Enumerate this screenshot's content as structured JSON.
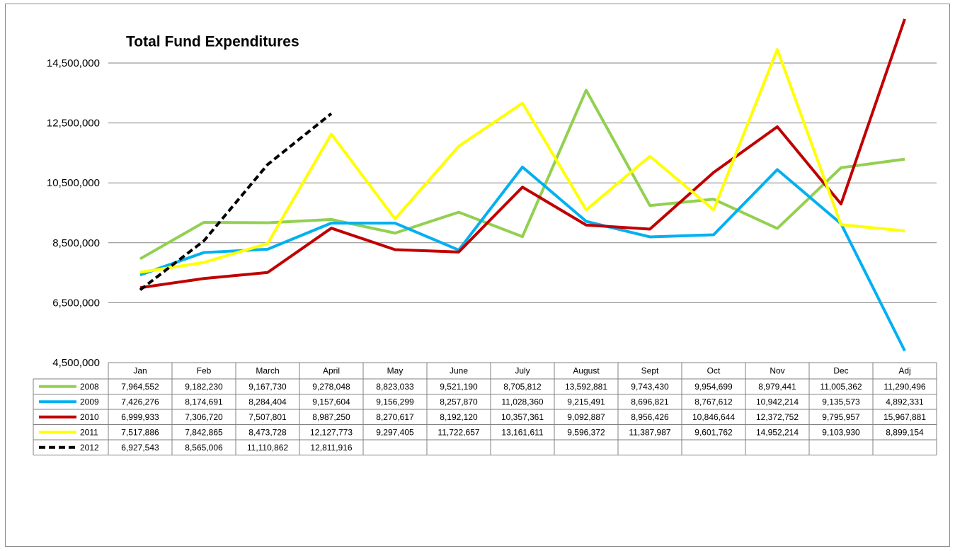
{
  "chart_data": {
    "type": "line",
    "title": "Total Fund Expenditures",
    "categories": [
      "Jan",
      "Feb",
      "March",
      "April",
      "May",
      "June",
      "July",
      "August",
      "Sept",
      "Oct",
      "Nov",
      "Dec",
      "Adj"
    ],
    "ylim": [
      4500000,
      16000000
    ],
    "yticks": [
      {
        "value": 4500000,
        "label": "4,500,000"
      },
      {
        "value": 6500000,
        "label": "6,500,000"
      },
      {
        "value": 8500000,
        "label": "8,500,000"
      },
      {
        "value": 10500000,
        "label": "10,500,000"
      },
      {
        "value": 12500000,
        "label": "12,500,000"
      },
      {
        "value": 14500000,
        "label": "14,500,000"
      }
    ],
    "grid": true,
    "legend": "table",
    "series": [
      {
        "name": "2008",
        "color": "#92d050",
        "line_style": "solid",
        "values": [
          7964552,
          9182230,
          9167730,
          9278048,
          8823033,
          9521190,
          8705812,
          13592881,
          9743430,
          9954699,
          8979441,
          11005362,
          11290496
        ],
        "value_labels": [
          "7,964,552",
          "9,182,230",
          "9,167,730",
          "9,278,048",
          "8,823,033",
          "9,521,190",
          "8,705,812",
          "13,592,881",
          "9,743,430",
          "9,954,699",
          "8,979,441",
          "11,005,362",
          "11,290,496"
        ]
      },
      {
        "name": "2009",
        "color": "#00b0f0",
        "line_style": "solid",
        "values": [
          7426276,
          8174691,
          8284404,
          9157604,
          9156299,
          8257870,
          11028360,
          9215491,
          8696821,
          8767612,
          10942214,
          9135573,
          4892331
        ],
        "value_labels": [
          "7,426,276",
          "8,174,691",
          "8,284,404",
          "9,157,604",
          "9,156,299",
          "8,257,870",
          "11,028,360",
          "9,215,491",
          "8,696,821",
          "8,767,612",
          "10,942,214",
          "9,135,573",
          "4,892,331"
        ]
      },
      {
        "name": "2010",
        "color": "#c00000",
        "line_style": "solid",
        "values": [
          6999933,
          7306720,
          7507801,
          8987250,
          8270617,
          8192120,
          10357361,
          9092887,
          8956426,
          10846644,
          12372752,
          9795957,
          15967881
        ],
        "value_labels": [
          "6,999,933",
          "7,306,720",
          "7,507,801",
          "8,987,250",
          "8,270,617",
          "8,192,120",
          "10,357,361",
          "9,092,887",
          "8,956,426",
          "10,846,644",
          "12,372,752",
          "9,795,957",
          "15,967,881"
        ]
      },
      {
        "name": "2011",
        "color": "#ffff00",
        "line_style": "solid",
        "values": [
          7517886,
          7842865,
          8473728,
          12127773,
          9297405,
          11722657,
          13161611,
          9596372,
          11387987,
          9601762,
          14952214,
          9103930,
          8899154
        ],
        "value_labels": [
          "7,517,886",
          "7,842,865",
          "8,473,728",
          "12,127,773",
          "9,297,405",
          "11,722,657",
          "13,161,611",
          "9,596,372",
          "11,387,987",
          "9,601,762",
          "14,952,214",
          "9,103,930",
          "8,899,154"
        ]
      },
      {
        "name": "2012",
        "color": "#000000",
        "line_style": "dashed",
        "values": [
          6927543,
          8565006,
          11110862,
          12811916,
          null,
          null,
          null,
          null,
          null,
          null,
          null,
          null,
          null
        ],
        "value_labels": [
          "6,927,543",
          "8,565,006",
          "11,110,862",
          "12,811,916",
          null,
          null,
          null,
          null,
          null,
          null,
          null,
          null,
          null
        ]
      }
    ]
  }
}
